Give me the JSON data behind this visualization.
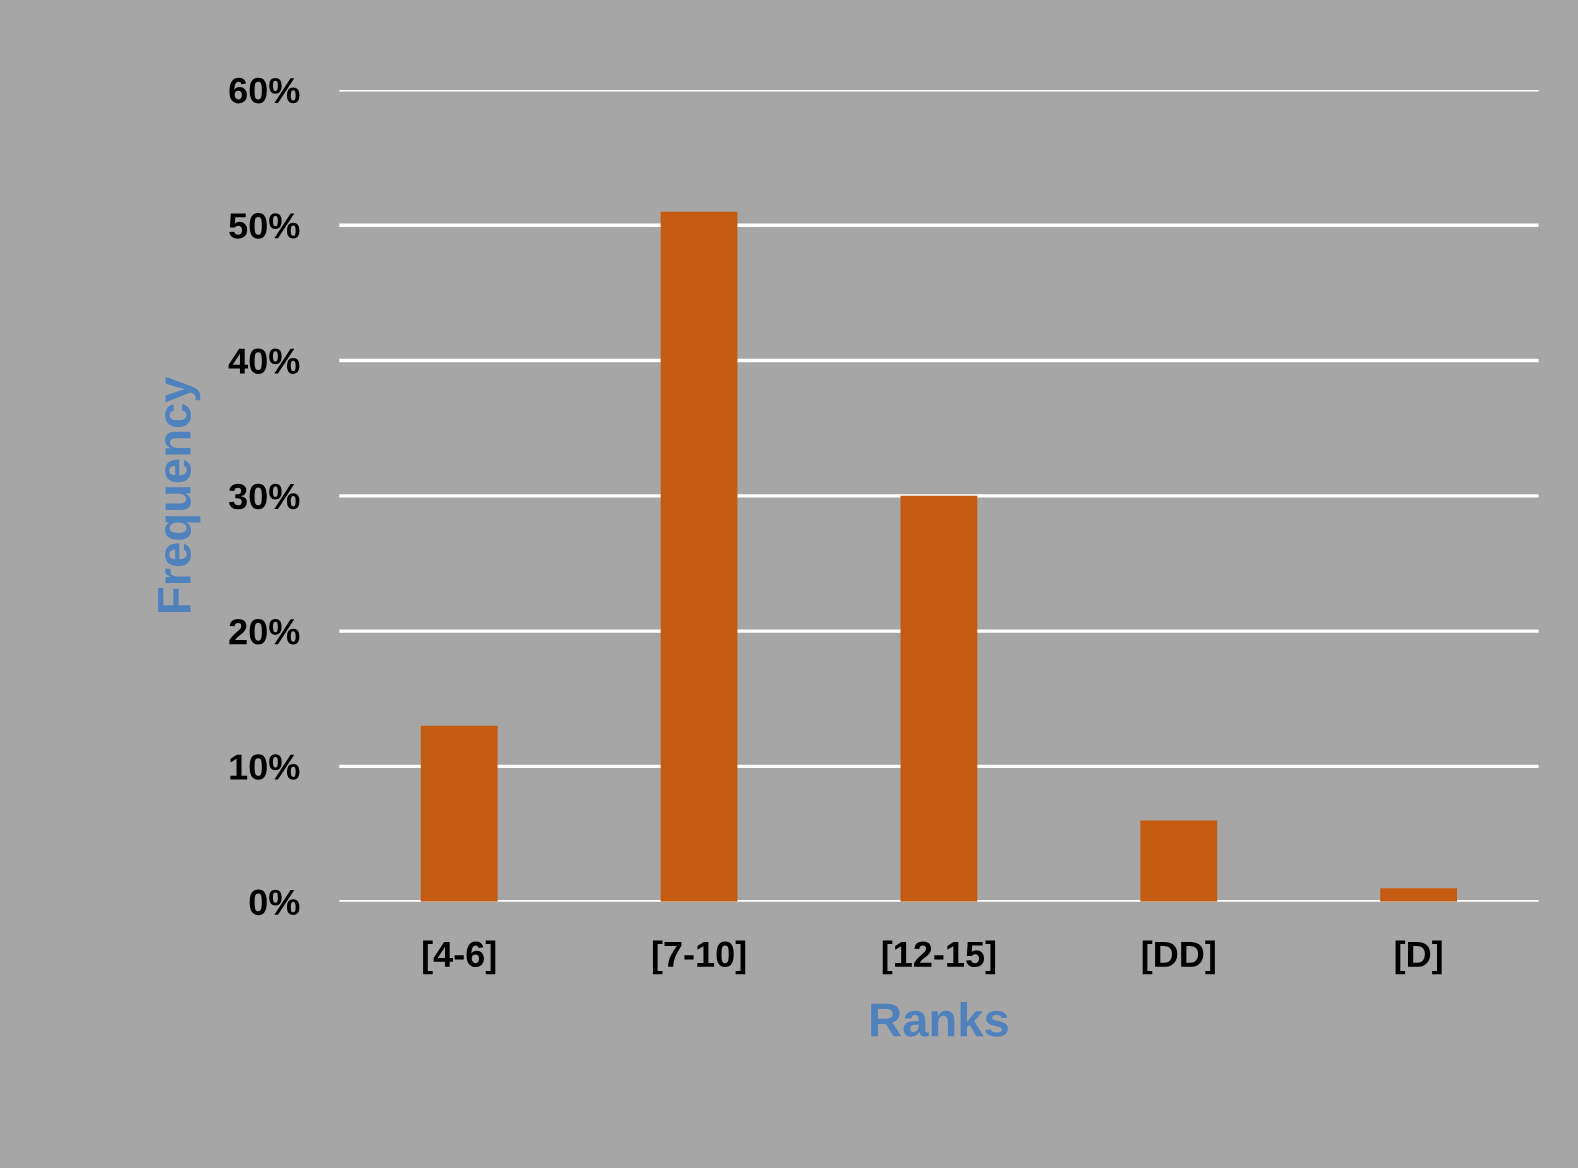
{
  "chart_data": {
    "type": "bar",
    "xlabel": "Ranks",
    "ylabel": "Frequency",
    "categories": [
      "[4-6]",
      "[7-10]",
      "[12-15]",
      "[DD]",
      "[D]"
    ],
    "values": [
      13,
      51,
      30,
      6,
      1
    ],
    "color": "#c55a11",
    "ylim": [
      0,
      60
    ],
    "yticks": [
      {
        "value": 0,
        "label": "0%"
      },
      {
        "value": 10,
        "label": "10%"
      },
      {
        "value": 20,
        "label": "20%"
      },
      {
        "value": 30,
        "label": "30%"
      },
      {
        "value": 40,
        "label": "40%"
      },
      {
        "value": 50,
        "label": "50%"
      },
      {
        "value": 60,
        "label": "60%"
      }
    ],
    "grid": "y"
  }
}
